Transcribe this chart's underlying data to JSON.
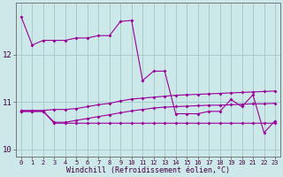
{
  "xlabel": "Windchill (Refroidissement éolien,°C)",
  "background_color": "#cce8e8",
  "grid_color": "#aacccc",
  "line_color": "#990099",
  "hours": [
    0,
    1,
    2,
    3,
    4,
    5,
    6,
    7,
    8,
    9,
    10,
    11,
    12,
    13,
    14,
    15,
    16,
    17,
    18,
    19,
    20,
    21,
    22,
    23
  ],
  "series1": [
    12.8,
    12.2,
    12.3,
    12.3,
    12.3,
    12.35,
    12.35,
    12.4,
    12.4,
    12.7,
    12.72,
    11.45,
    11.65,
    11.65,
    10.75,
    10.75,
    10.75,
    10.8,
    10.8,
    11.05,
    10.9,
    11.15,
    10.35,
    10.6
  ],
  "series2": [
    10.82,
    10.82,
    10.82,
    10.84,
    10.84,
    10.86,
    10.9,
    10.94,
    10.97,
    11.02,
    11.06,
    11.08,
    11.1,
    11.12,
    11.14,
    11.15,
    11.16,
    11.17,
    11.18,
    11.19,
    11.2,
    11.21,
    11.22,
    11.23
  ],
  "series3": [
    10.8,
    10.8,
    10.8,
    10.57,
    10.57,
    10.61,
    10.65,
    10.69,
    10.73,
    10.77,
    10.81,
    10.84,
    10.87,
    10.89,
    10.9,
    10.91,
    10.92,
    10.93,
    10.93,
    10.94,
    10.95,
    10.96,
    10.96,
    10.97
  ],
  "series4": [
    10.8,
    10.8,
    10.8,
    10.55,
    10.55,
    10.55,
    10.55,
    10.55,
    10.55,
    10.55,
    10.55,
    10.55,
    10.55,
    10.55,
    10.55,
    10.55,
    10.55,
    10.55,
    10.55,
    10.55,
    10.55,
    10.55,
    10.55,
    10.55
  ],
  "ylim": [
    9.85,
    13.1
  ],
  "yticks": [
    10,
    11,
    12
  ],
  "xtick_labels": [
    "0",
    "1",
    "2",
    "3",
    "4",
    "5",
    "6",
    "7",
    "8",
    "9",
    "10",
    "11",
    "12",
    "13",
    "14",
    "15",
    "16",
    "17",
    "18",
    "19",
    "20",
    "21",
    "22",
    "23"
  ]
}
